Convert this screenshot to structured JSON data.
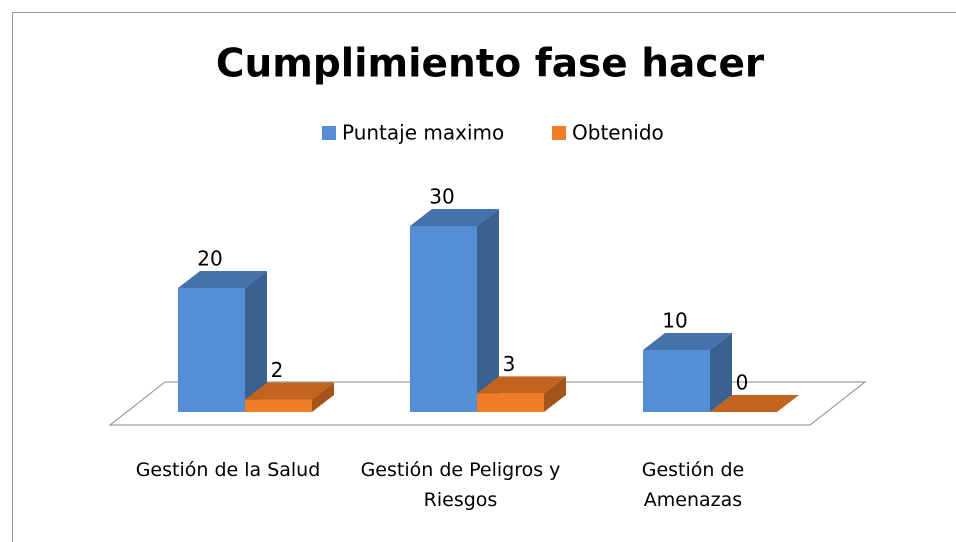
{
  "chart_data": {
    "type": "bar3d",
    "title": "Cumplimiento fase hacer",
    "categories": [
      "Gestión de la Salud",
      "Gestión de Peligros y Riesgos",
      "Gestión de Amenazas"
    ],
    "series": [
      {
        "name": "Puntaje maximo",
        "color": "#558ed5",
        "values": [
          20,
          30,
          10
        ]
      },
      {
        "name": "Obtenido",
        "color": "#f27c26",
        "values": [
          2,
          3,
          0
        ]
      }
    ],
    "legend": "top"
  }
}
